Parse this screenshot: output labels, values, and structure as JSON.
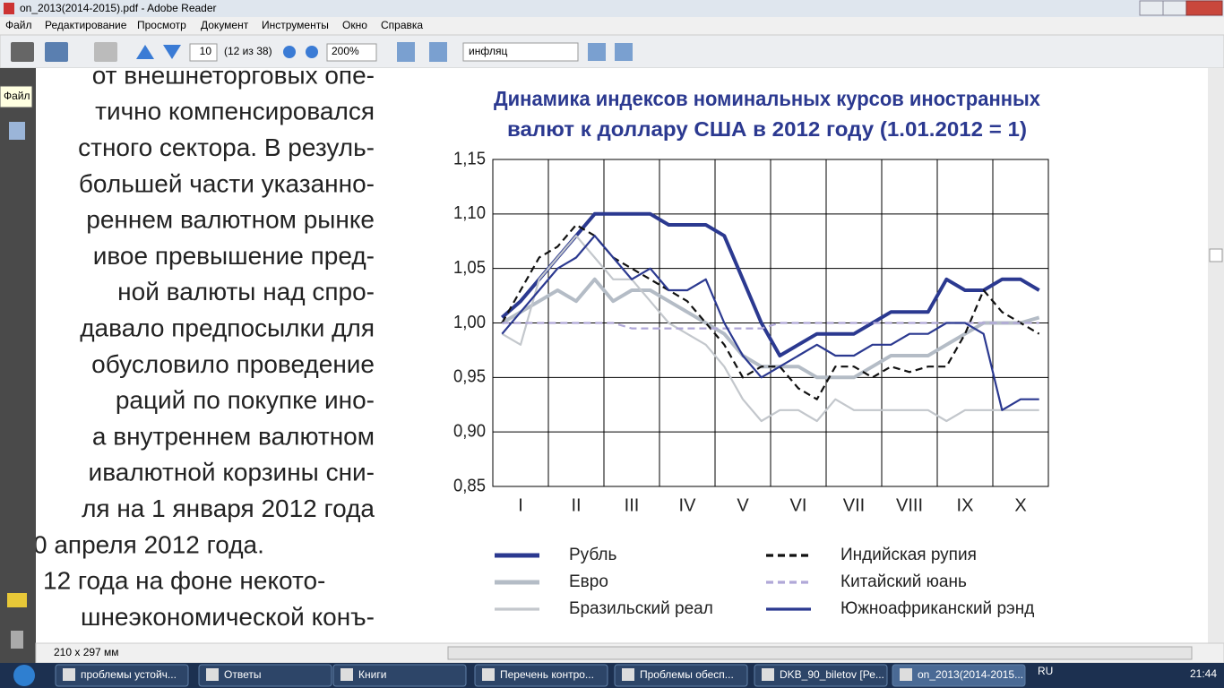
{
  "window": {
    "title": "on_2013(2014-2015).pdf - Adobe Reader"
  },
  "menu": [
    "Файл",
    "Редактирование",
    "Просмотр",
    "Документ",
    "Инструменты",
    "Окно",
    "Справка"
  ],
  "toolbar": {
    "page": "10",
    "page_count": "(12 из 38)",
    "zoom": "200%",
    "search": "инфляц"
  },
  "tooltip": "Файл",
  "document": {
    "lines": [
      "от внешнеторговых опе-",
      "тично компенсировался",
      "стного сектора. В резуль-",
      "большей части указанно-",
      "реннем валютном рынке",
      "ивое превышение пред-",
      "ной валюты над спро-",
      "давало предпосылки для",
      "обусловило проведение",
      "раций по покупке ино-",
      "а внутреннем валютном",
      "ивалютной корзины сни-",
      "ля на 1 января 2012 года",
      "0 апреля 2012 года.",
      "12 года на фоне некото-",
      "шнеэкономической конъ-"
    ]
  },
  "status": "210 x 297 мм",
  "taskbar": {
    "items": [
      "проблемы устойч...",
      "Ответы",
      "Книги",
      "Перечень контро...",
      "Проблемы обесп...",
      "DKB_90_biletov [Ре...",
      "on_2013(2014-2015..."
    ],
    "lang": "RU",
    "clock": "21:44"
  },
  "chart_data": {
    "type": "line",
    "title": [
      "Динамика индексов номинальных курсов иностранных",
      "валют к доллару США в 2012 году (1.01.2012 = 1)"
    ],
    "categories": [
      null,
      "I",
      null,
      null,
      "II",
      null,
      null,
      "III",
      null,
      null,
      "IV",
      null,
      null,
      "V",
      null,
      null,
      "VI",
      null,
      null,
      "VII",
      null,
      null,
      "VIII",
      null,
      null,
      "IX",
      null,
      null,
      "X",
      null
    ],
    "ylim": [
      0.85,
      1.15
    ],
    "yticks": [
      {
        "value": 0.85,
        "label": "0,85"
      },
      {
        "value": 0.9,
        "label": "0,90"
      },
      {
        "value": 0.95,
        "label": "0,95"
      },
      {
        "value": 1.0,
        "label": "1,00"
      },
      {
        "value": 1.05,
        "label": "1,05"
      },
      {
        "value": 1.1,
        "label": "1,10"
      },
      {
        "value": 1.15,
        "label": "1,15"
      }
    ],
    "grid": true,
    "series": [
      {
        "name": "Рубль",
        "color": "#2b3990",
        "style": "solid",
        "weight": "thick",
        "values": [
          1.005,
          1.02,
          1.04,
          1.06,
          1.08,
          1.1,
          1.1,
          1.1,
          1.1,
          1.09,
          1.09,
          1.09,
          1.08,
          1.04,
          1.0,
          0.97,
          0.98,
          0.99,
          0.99,
          0.99,
          1.0,
          1.01,
          1.01,
          1.01,
          1.04,
          1.03,
          1.03,
          1.04,
          1.04,
          1.03
        ]
      },
      {
        "name": "Евро",
        "color": "#b4bcc6",
        "style": "solid",
        "weight": "thick",
        "values": [
          1.0,
          1.01,
          1.02,
          1.03,
          1.02,
          1.04,
          1.02,
          1.03,
          1.03,
          1.02,
          1.01,
          1.0,
          0.99,
          0.97,
          0.96,
          0.96,
          0.96,
          0.95,
          0.95,
          0.95,
          0.96,
          0.97,
          0.97,
          0.97,
          0.98,
          0.99,
          1.0,
          1.0,
          1.0,
          1.005
        ]
      },
      {
        "name": "Бразильский реал",
        "color": "#c3c7cc",
        "style": "solid",
        "weight": "thin",
        "values": [
          0.99,
          0.98,
          1.04,
          1.06,
          1.08,
          1.06,
          1.04,
          1.04,
          1.02,
          1.0,
          0.99,
          0.98,
          0.96,
          0.93,
          0.91,
          0.92,
          0.92,
          0.91,
          0.93,
          0.92,
          0.92,
          0.92,
          0.92,
          0.92,
          0.91,
          0.92,
          0.92,
          0.92,
          0.92,
          0.92
        ]
      },
      {
        "name": "Индийская рупия",
        "color": "#111111",
        "style": "dashed",
        "weight": "thin",
        "values": [
          1.0,
          1.03,
          1.06,
          1.07,
          1.09,
          1.08,
          1.06,
          1.05,
          1.04,
          1.03,
          1.02,
          1.0,
          0.98,
          0.95,
          0.96,
          0.96,
          0.94,
          0.93,
          0.96,
          0.96,
          0.95,
          0.96,
          0.955,
          0.96,
          0.96,
          0.99,
          1.03,
          1.01,
          1.0,
          0.99
        ]
      },
      {
        "name": "Китайский юань",
        "color": "#b0a8d8",
        "style": "dashed",
        "weight": "thin",
        "values": [
          1.0,
          1.0,
          1.0,
          1.0,
          1.0,
          1.0,
          1.0,
          0.995,
          0.995,
          0.995,
          0.995,
          0.995,
          0.995,
          0.995,
          0.995,
          1.0,
          1.0,
          1.0,
          1.0,
          1.0,
          1.0,
          1.0,
          1.0,
          1.0,
          1.0,
          1.0,
          1.0,
          1.0,
          1.0,
          1.0
        ]
      },
      {
        "name": "Южноафриканский рэнд",
        "color": "#2b3990",
        "style": "solid",
        "weight": "thin",
        "values": [
          0.99,
          1.01,
          1.03,
          1.05,
          1.06,
          1.08,
          1.06,
          1.04,
          1.05,
          1.03,
          1.03,
          1.04,
          1.0,
          0.97,
          0.95,
          0.96,
          0.97,
          0.98,
          0.97,
          0.97,
          0.98,
          0.98,
          0.99,
          0.99,
          1.0,
          1.0,
          0.99,
          0.92,
          0.93,
          0.93
        ]
      }
    ]
  }
}
